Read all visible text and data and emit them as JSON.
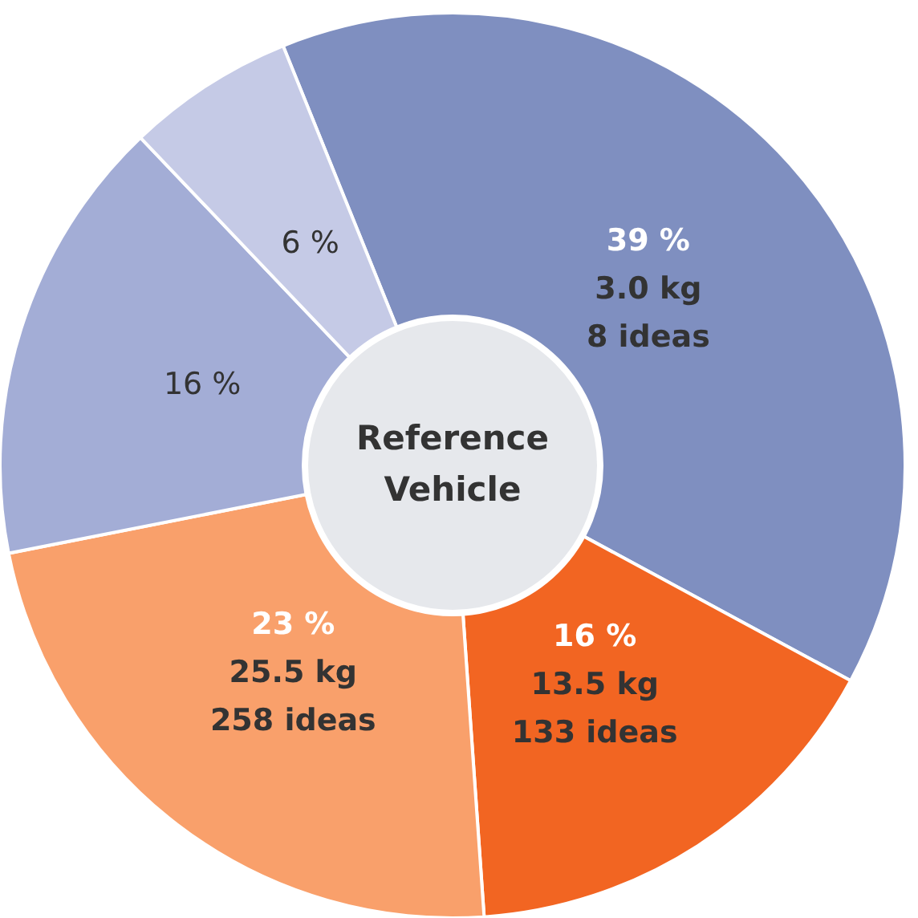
{
  "chart_data": {
    "type": "donut",
    "title": "Reference Vehicle",
    "categories": [
      null,
      null,
      null,
      null,
      null
    ],
    "values": [
      39,
      16,
      23,
      16,
      6
    ],
    "colors": [
      "#7f8fc0",
      "#f26522",
      "#f9a06b",
      "#a3add6",
      "#c5cae6"
    ],
    "value_labels": [
      "39 %\n3.0 kg\n8 ideas",
      "16 %\n13.5 kg\n133 ideas",
      "23 %\n25.5 kg\n258 ideas",
      "16 %",
      "6 %"
    ]
  }
}
